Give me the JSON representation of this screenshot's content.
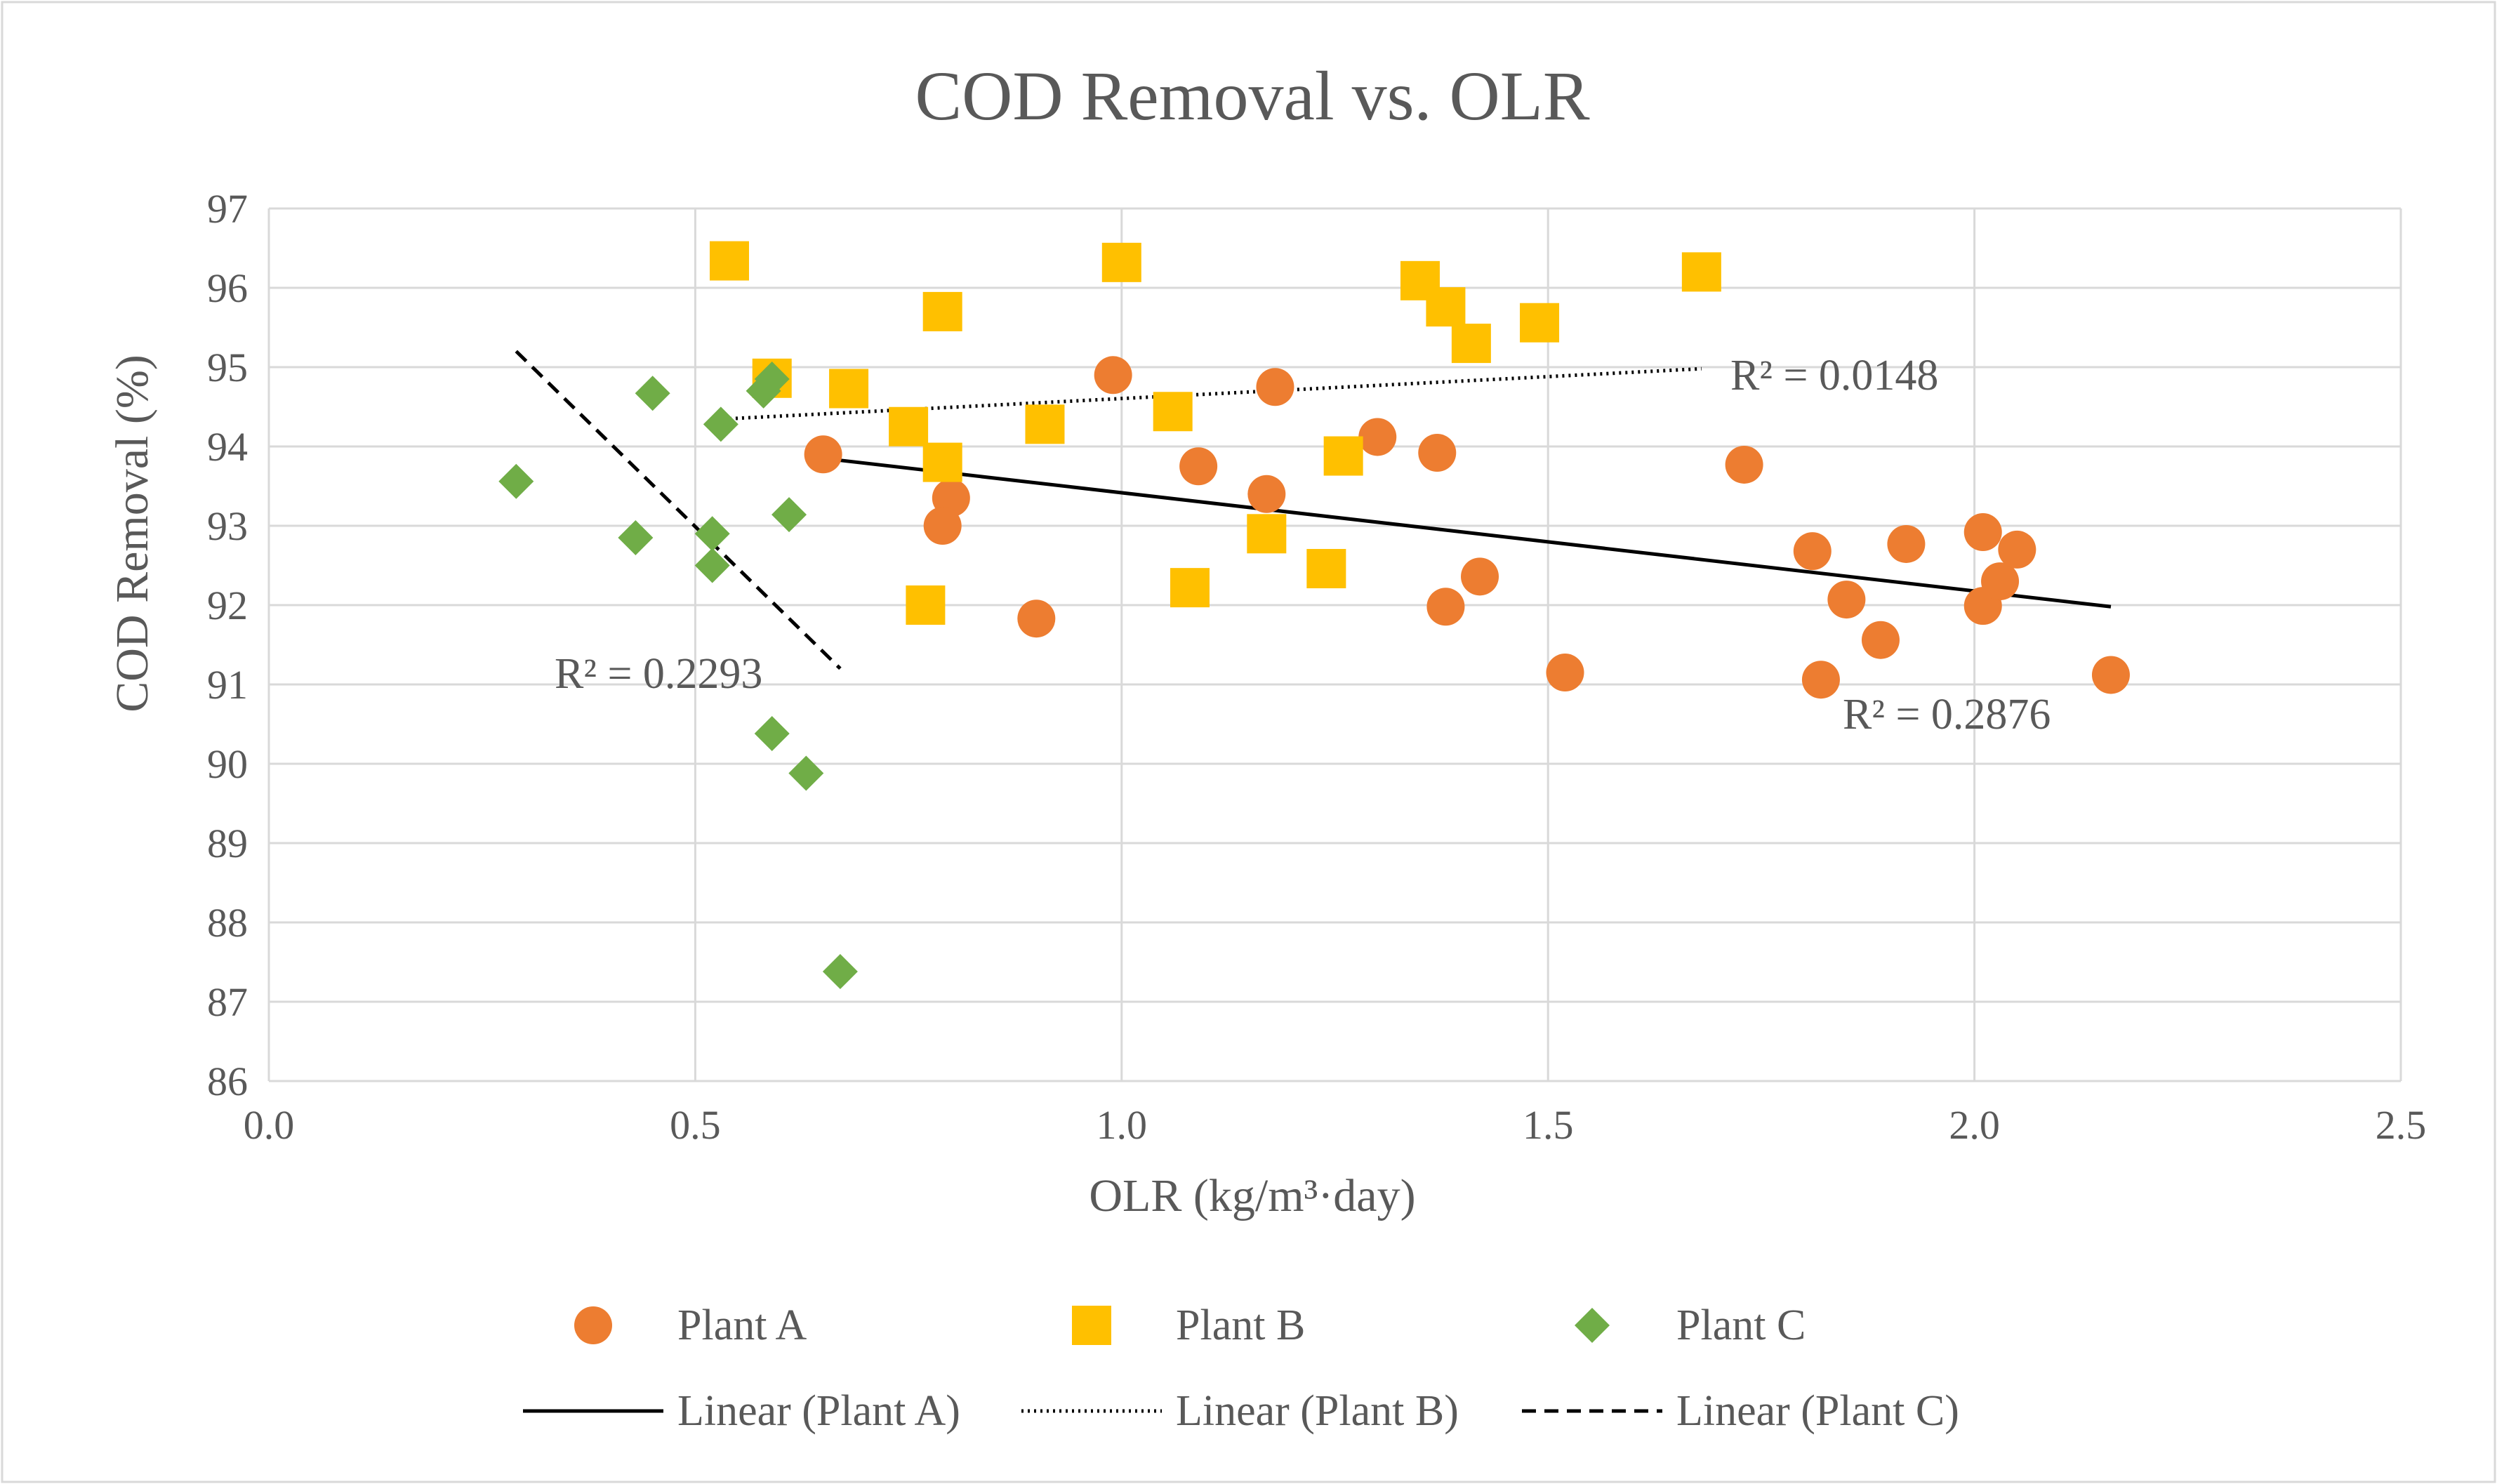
{
  "chart_data": {
    "type": "scatter",
    "title": "COD Removal vs. OLR",
    "xlabel": "OLR (kg/m³·day)",
    "ylabel": "COD Removal (%)",
    "xlim": [
      0,
      2.5
    ],
    "ylim": [
      86,
      97
    ],
    "xticks": [
      "0.0",
      "0.5",
      "1.0",
      "1.5",
      "2.0",
      "2.5"
    ],
    "yticks": [
      "86",
      "87",
      "88",
      "89",
      "90",
      "91",
      "92",
      "93",
      "94",
      "95",
      "96",
      "97"
    ],
    "xtick_values": [
      0,
      0.5,
      1.0,
      1.5,
      2.0,
      2.5
    ],
    "ytick_values": [
      86,
      87,
      88,
      89,
      90,
      91,
      92,
      93,
      94,
      95,
      96,
      97
    ],
    "grid": true,
    "legend_position": "bottom",
    "series": [
      {
        "name": "Plant A",
        "marker": "circle",
        "color": "#ED7D31",
        "points": [
          [
            0.65,
            93.9
          ],
          [
            0.8,
            93.35
          ],
          [
            0.79,
            93.0
          ],
          [
            0.9,
            91.83
          ],
          [
            0.99,
            94.9
          ],
          [
            1.09,
            93.75
          ],
          [
            1.17,
            93.4
          ],
          [
            1.18,
            94.75
          ],
          [
            1.3,
            94.12
          ],
          [
            1.37,
            93.92
          ],
          [
            1.38,
            91.98
          ],
          [
            1.42,
            92.36
          ],
          [
            1.52,
            91.15
          ],
          [
            1.73,
            93.77
          ],
          [
            1.81,
            92.68
          ],
          [
            1.82,
            91.06
          ],
          [
            1.85,
            92.07
          ],
          [
            1.89,
            91.56
          ],
          [
            1.92,
            92.77
          ],
          [
            2.01,
            92.92
          ],
          [
            2.01,
            91.99
          ],
          [
            2.03,
            92.3
          ],
          [
            2.05,
            92.7
          ],
          [
            2.16,
            91.12
          ]
        ],
        "r_squared_label": "R² = 0.2876",
        "trendline": {
          "name": "Linear (Plant A)",
          "style": "solid",
          "x": [
            0.65,
            2.16
          ],
          "y": [
            93.85,
            91.98
          ]
        }
      },
      {
        "name": "Plant B",
        "marker": "square",
        "color": "#FFC000",
        "points": [
          [
            0.54,
            96.34
          ],
          [
            0.59,
            94.86
          ],
          [
            0.68,
            94.73
          ],
          [
            0.75,
            94.25
          ],
          [
            0.77,
            92.0
          ],
          [
            0.79,
            93.8
          ],
          [
            0.79,
            95.7
          ],
          [
            0.91,
            94.28
          ],
          [
            1.0,
            96.32
          ],
          [
            1.06,
            94.44
          ],
          [
            1.08,
            92.22
          ],
          [
            1.17,
            92.9
          ],
          [
            1.24,
            92.46
          ],
          [
            1.26,
            93.88
          ],
          [
            1.35,
            96.09
          ],
          [
            1.38,
            95.76
          ],
          [
            1.41,
            95.3
          ],
          [
            1.49,
            95.56
          ],
          [
            1.68,
            96.2
          ]
        ],
        "r_squared_label": "R² = 0.0148",
        "trendline": {
          "name": "Linear (Plant B)",
          "style": "dotted",
          "x": [
            0.54,
            1.68
          ],
          "y": [
            94.35,
            94.98
          ]
        }
      },
      {
        "name": "Plant C",
        "marker": "diamond",
        "color": "#70AD47",
        "points": [
          [
            0.29,
            93.56
          ],
          [
            0.43,
            92.85
          ],
          [
            0.45,
            94.67
          ],
          [
            0.52,
            92.9
          ],
          [
            0.52,
            92.5
          ],
          [
            0.53,
            94.28
          ],
          [
            0.58,
            94.7
          ],
          [
            0.59,
            94.85
          ],
          [
            0.59,
            90.38
          ],
          [
            0.61,
            93.14
          ],
          [
            0.63,
            89.88
          ],
          [
            0.67,
            87.38
          ]
        ],
        "r_squared_label": "R² = 0.2293",
        "trendline": {
          "name": "Linear (Plant C)",
          "style": "dashed",
          "x": [
            0.29,
            0.67
          ],
          "y": [
            95.2,
            91.2
          ]
        }
      }
    ]
  }
}
